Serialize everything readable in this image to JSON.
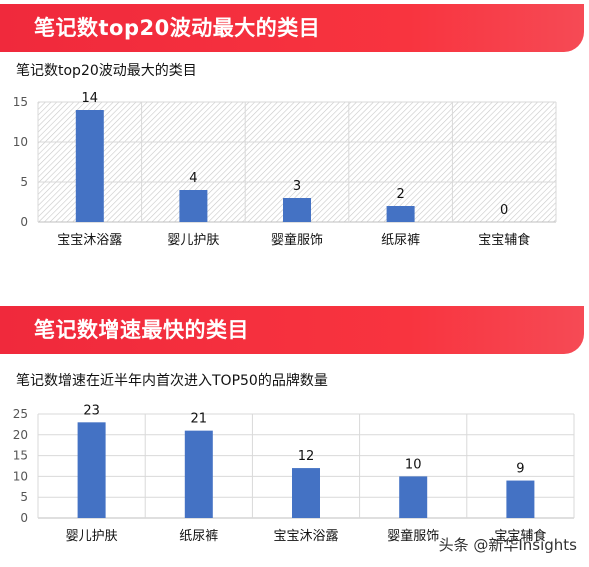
{
  "sections": [
    {
      "banner": "笔记数top20波动最大的类目",
      "chart_data": {
        "type": "bar",
        "title": "笔记数top20波动最大的类目",
        "categories": [
          "宝宝沐浴露",
          "婴儿护肤",
          "婴童服饰",
          "纸尿裤",
          "宝宝辅食"
        ],
        "values": [
          14,
          4,
          3,
          2,
          0
        ],
        "yticks": [
          0,
          5,
          10,
          15
        ],
        "ylim": [
          0,
          15
        ],
        "grid": true,
        "bar_color": "#4472c4"
      }
    },
    {
      "banner": "笔记数增速最快的类目",
      "chart_data": {
        "type": "bar",
        "title": "笔记数增速在近半年内首次进入TOP50的品牌数量",
        "categories": [
          "婴儿护肤",
          "纸尿裤",
          "宝宝沐浴露",
          "婴童服饰",
          "宝宝辅食"
        ],
        "values": [
          23,
          21,
          12,
          10,
          9
        ],
        "yticks": [
          0,
          5,
          10,
          15,
          20,
          25
        ],
        "ylim": [
          0,
          25
        ],
        "grid": true,
        "bar_color": "#4472c4"
      }
    }
  ],
  "watermark": "头条 @新华Insights",
  "colors": {
    "banner": "#f0293c",
    "bar": "#4472c4"
  }
}
